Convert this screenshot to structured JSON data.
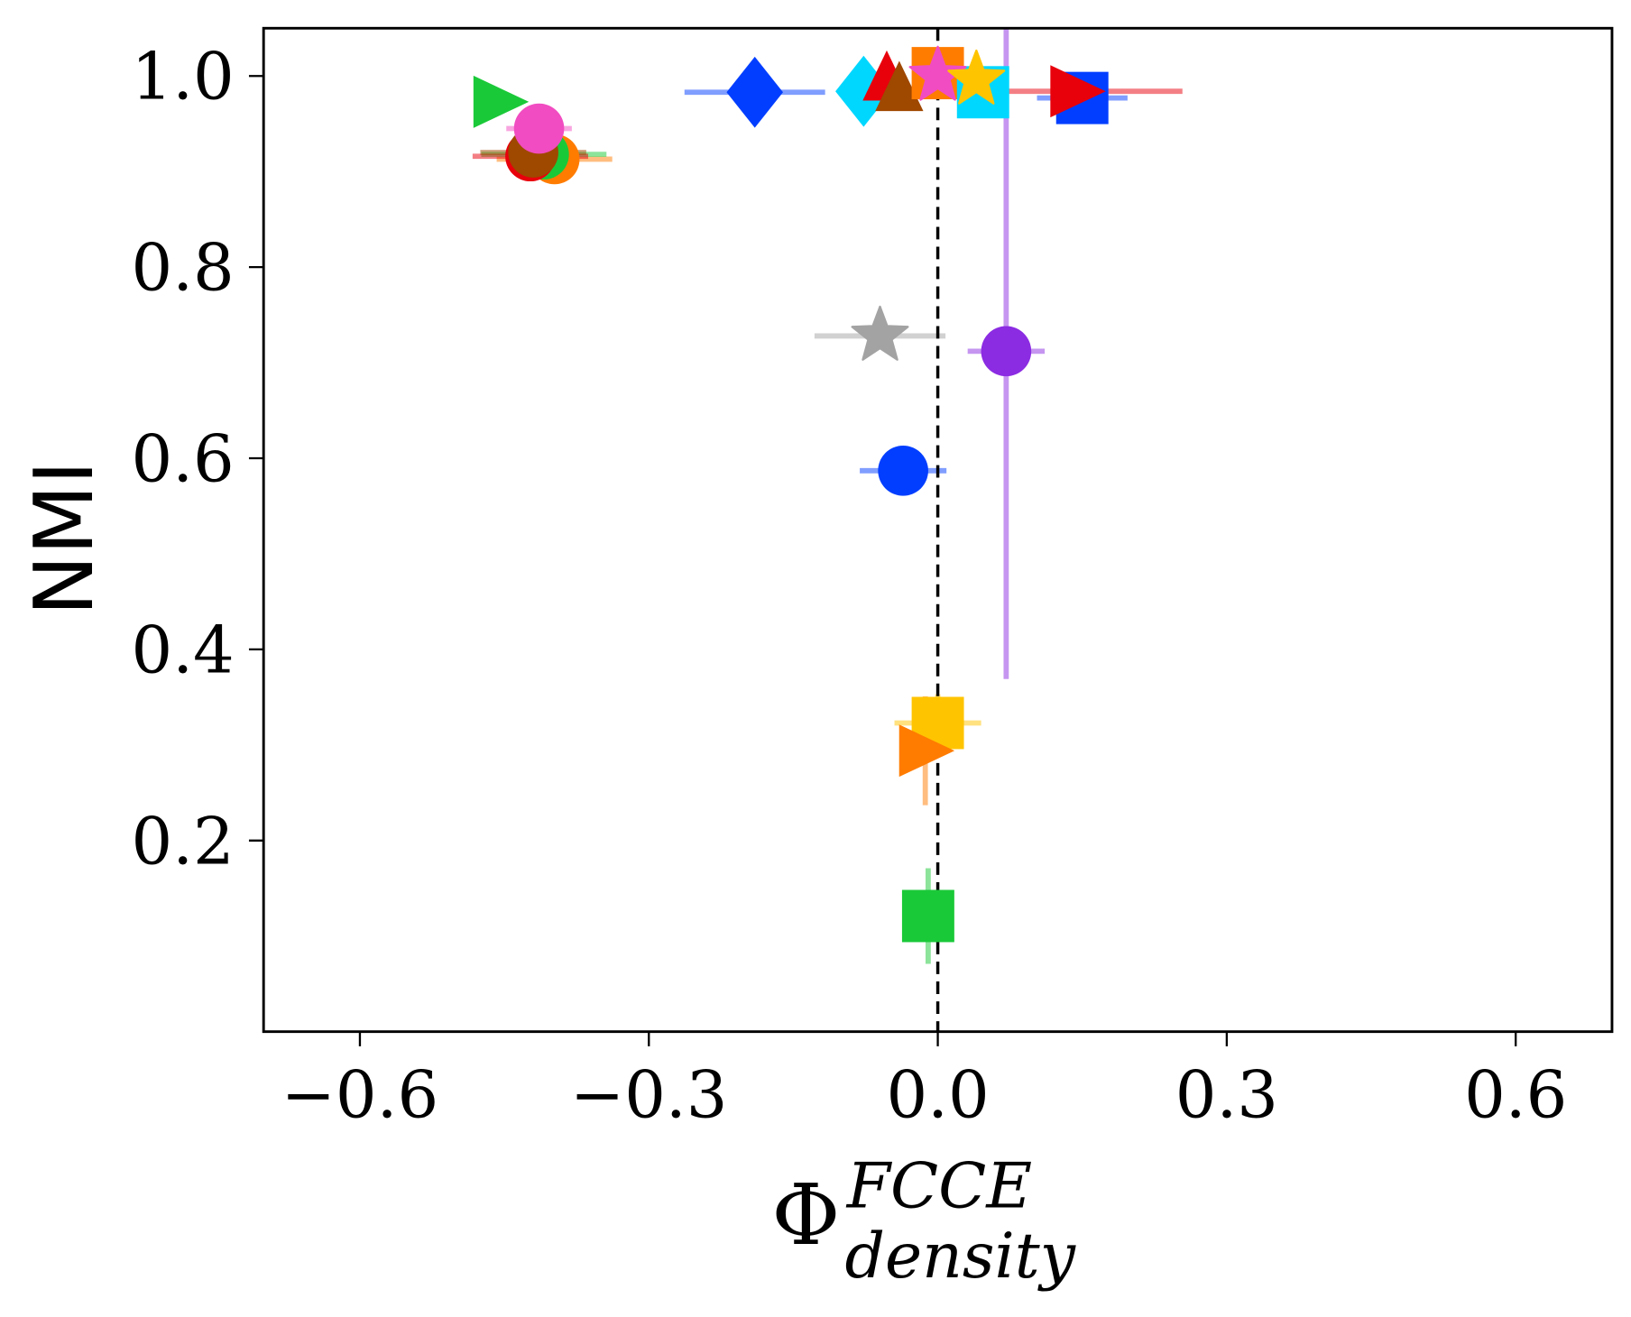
{
  "chart_data": {
    "type": "scatter",
    "title": "",
    "xlabel": "Φ",
    "xlabel_sup": "FCCE",
    "xlabel_sub": "density",
    "ylabel": "NMI",
    "xlim": [
      -0.7,
      0.7
    ],
    "ylim": [
      0.0,
      1.05
    ],
    "xticks": [
      -0.6,
      -0.3,
      0.0,
      0.3,
      0.6
    ],
    "xtick_labels": [
      "−0.6",
      "−0.3",
      "0.0",
      "0.3",
      "0.6"
    ],
    "yticks": [
      0.2,
      0.4,
      0.6,
      0.8,
      1.0
    ],
    "ytick_labels": [
      "0.2",
      "0.4",
      "0.6",
      "0.8",
      "1.0"
    ],
    "reference_line": {
      "x": 0.0,
      "style": "dashed",
      "color": "#000000"
    },
    "grid": false,
    "points": [
      {
        "marker": "circle",
        "color": "#ff7c00",
        "x": -0.398,
        "y": 0.913,
        "xerr": 0.06,
        "yerr": 0
      },
      {
        "marker": "circle",
        "color": "#1ac938",
        "x": -0.409,
        "y": 0.918,
        "xerr": 0.065,
        "yerr": 0
      },
      {
        "marker": "circle",
        "color": "#e8000b",
        "x": -0.423,
        "y": 0.916,
        "xerr": 0.06,
        "yerr": 0
      },
      {
        "marker": "circle",
        "color": "#9f4800",
        "x": -0.42,
        "y": 0.92,
        "xerr": 0.055,
        "yerr": 0
      },
      {
        "marker": "circle",
        "color": "#f14cc1",
        "x": -0.414,
        "y": 0.945,
        "xerr": 0.034,
        "yerr": 0
      },
      {
        "marker": "triangle-right",
        "color": "#1ac938",
        "x": -0.455,
        "y": 0.973,
        "xerr": 0,
        "yerr": 0
      },
      {
        "marker": "diamond",
        "color": "#023eff",
        "x": -0.19,
        "y": 0.983,
        "xerr": 0.073,
        "yerr": 0
      },
      {
        "marker": "diamond",
        "color": "#00d7ff",
        "x": -0.077,
        "y": 0.984,
        "xerr": 0.02,
        "yerr": 0
      },
      {
        "marker": "triangle-up",
        "color": "#e8000b",
        "x": -0.053,
        "y": 0.994,
        "xerr": 0,
        "yerr": 0
      },
      {
        "marker": "triangle-up",
        "color": "#9f4800",
        "x": -0.04,
        "y": 0.983,
        "xerr": 0,
        "yerr": 0
      },
      {
        "marker": "square",
        "color": "#ff7c00",
        "x": 0.0,
        "y": 1.003,
        "xerr": 0,
        "yerr": 0
      },
      {
        "marker": "square",
        "color": "#00d7ff",
        "x": 0.047,
        "y": 0.983,
        "xerr": 0.01,
        "yerr": 0
      },
      {
        "marker": "star",
        "color": "#f14cc1",
        "x": 0.0,
        "y": 1.0,
        "xerr": 0,
        "yerr": 0
      },
      {
        "marker": "star",
        "color": "#ffc400",
        "x": 0.04,
        "y": 0.996,
        "xerr": 0,
        "yerr": 0
      },
      {
        "marker": "square",
        "color": "#023eff",
        "x": 0.15,
        "y": 0.977,
        "xerr": 0.047,
        "yerr": 0
      },
      {
        "marker": "triangle-right",
        "color": "#e8000b",
        "x": 0.144,
        "y": 0.984,
        "xerr": 0.11,
        "yerr": 0
      },
      {
        "marker": "star",
        "color": "#a3a3a3",
        "x": -0.06,
        "y": 0.728,
        "xerr": 0.068,
        "yerr": 0
      },
      {
        "marker": "circle",
        "color": "#8b2be2",
        "x": 0.071,
        "y": 0.712,
        "xerr": 0.04,
        "yerr": 0.343
      },
      {
        "marker": "circle",
        "color": "#023eff",
        "x": -0.036,
        "y": 0.587,
        "xerr": 0.045,
        "yerr": 0
      },
      {
        "marker": "square",
        "color": "#ffc400",
        "x": 0.0,
        "y": 0.323,
        "xerr": 0.045,
        "yerr": 0.03
      },
      {
        "marker": "triangle-right",
        "color": "#ff7c00",
        "x": -0.013,
        "y": 0.294,
        "xerr": 0,
        "yerr": 0.057
      },
      {
        "marker": "square",
        "color": "#1ac938",
        "x": -0.01,
        "y": 0.121,
        "xerr": 0,
        "yerr": 0.05
      }
    ]
  }
}
